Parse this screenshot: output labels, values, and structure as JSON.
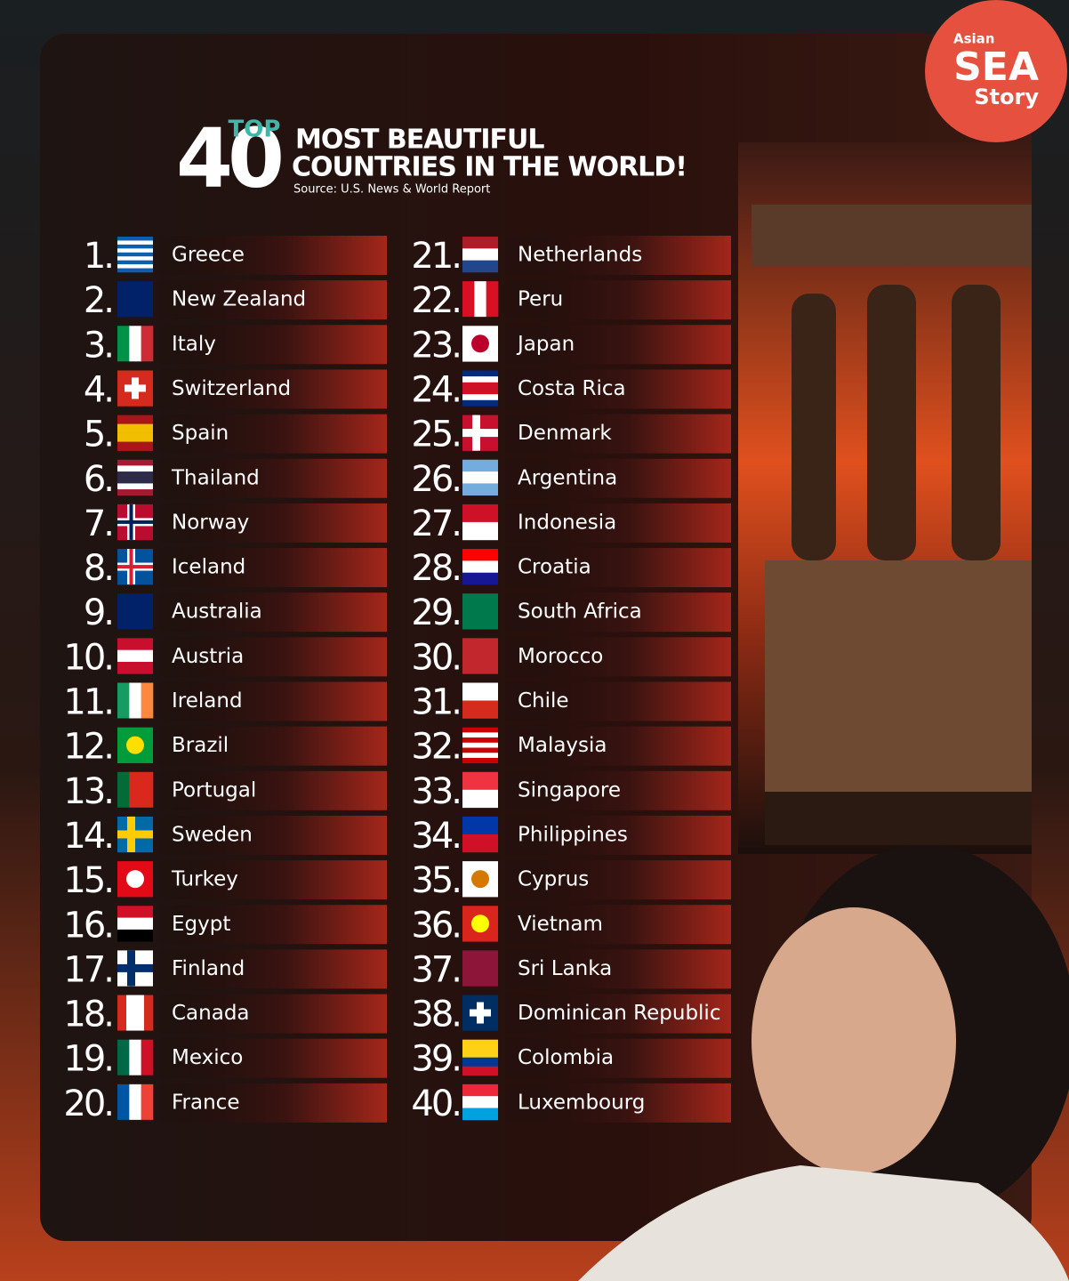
{
  "logo": {
    "small": "Asian",
    "big": "SEA",
    "tail": "Story"
  },
  "header": {
    "top": "TOP",
    "number": "40",
    "title_line1": "MOST BEAUTIFUL",
    "title_line2": "COUNTRIES IN THE WORLD!",
    "source": "Source: U.S. News & World Report"
  },
  "items": [
    {
      "rank": "1.",
      "name": "Greece"
    },
    {
      "rank": "2.",
      "name": "New Zealand"
    },
    {
      "rank": "3.",
      "name": "Italy"
    },
    {
      "rank": "4.",
      "name": "Switzerland"
    },
    {
      "rank": "5.",
      "name": "Spain"
    },
    {
      "rank": "6.",
      "name": "Thailand"
    },
    {
      "rank": "7.",
      "name": "Norway"
    },
    {
      "rank": "8.",
      "name": "Iceland"
    },
    {
      "rank": "9.",
      "name": "Australia"
    },
    {
      "rank": "10.",
      "name": "Austria"
    },
    {
      "rank": "11.",
      "name": "Ireland"
    },
    {
      "rank": "12.",
      "name": "Brazil"
    },
    {
      "rank": "13.",
      "name": "Portugal"
    },
    {
      "rank": "14.",
      "name": "Sweden"
    },
    {
      "rank": "15.",
      "name": "Turkey"
    },
    {
      "rank": "16.",
      "name": "Egypt"
    },
    {
      "rank": "17.",
      "name": "Finland"
    },
    {
      "rank": "18.",
      "name": "Canada"
    },
    {
      "rank": "19.",
      "name": "Mexico"
    },
    {
      "rank": "20.",
      "name": "France"
    },
    {
      "rank": "21.",
      "name": "Netherlands"
    },
    {
      "rank": "22.",
      "name": "Peru"
    },
    {
      "rank": "23.",
      "name": "Japan"
    },
    {
      "rank": "24.",
      "name": "Costa Rica"
    },
    {
      "rank": "25.",
      "name": "Denmark"
    },
    {
      "rank": "26.",
      "name": "Argentina"
    },
    {
      "rank": "27.",
      "name": "Indonesia"
    },
    {
      "rank": "28.",
      "name": "Croatia"
    },
    {
      "rank": "29.",
      "name": "South Africa"
    },
    {
      "rank": "30.",
      "name": "Morocco"
    },
    {
      "rank": "31.",
      "name": "Chile"
    },
    {
      "rank": "32.",
      "name": "Malaysia"
    },
    {
      "rank": "33.",
      "name": "Singapore"
    },
    {
      "rank": "34.",
      "name": "Philippines"
    },
    {
      "rank": "35.",
      "name": "Cyprus"
    },
    {
      "rank": "36.",
      "name": "Vietnam"
    },
    {
      "rank": "37.",
      "name": "Sri Lanka"
    },
    {
      "rank": "38.",
      "name": "Dominican Republic"
    },
    {
      "rank": "39.",
      "name": "Colombia"
    },
    {
      "rank": "40.",
      "name": "Luxembourg"
    }
  ]
}
